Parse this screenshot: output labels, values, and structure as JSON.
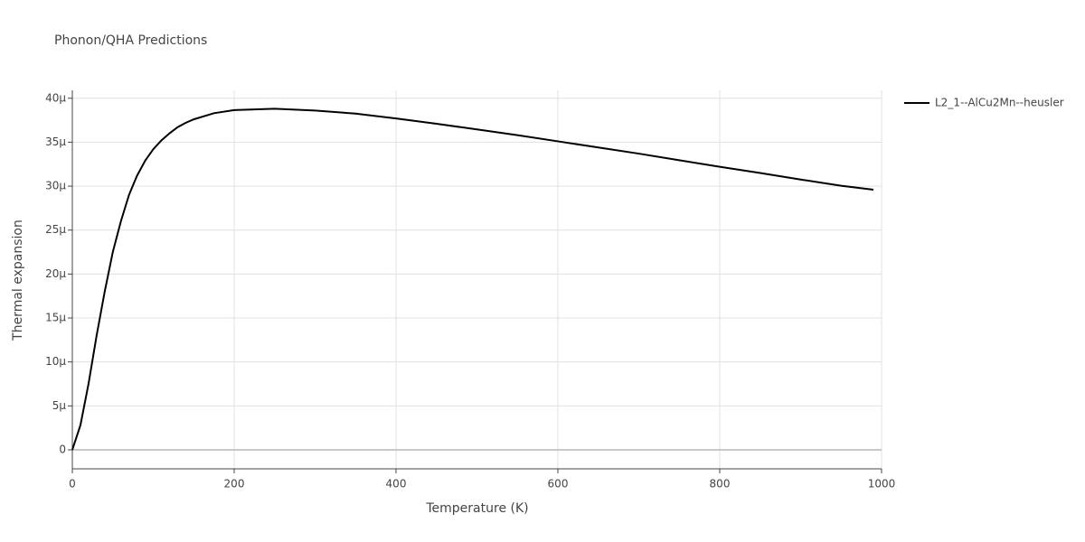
{
  "chart_data": {
    "type": "line",
    "title": "Phonon/QHA Predictions",
    "x_label": "Temperature (K)",
    "y_label": "Thermal expansion",
    "x": [
      0,
      10,
      20,
      30,
      40,
      50,
      60,
      70,
      80,
      90,
      100,
      110,
      120,
      130,
      140,
      150,
      175,
      200,
      250,
      300,
      350,
      400,
      450,
      500,
      550,
      600,
      650,
      700,
      750,
      800,
      850,
      900,
      950,
      990
    ],
    "series": [
      {
        "name": "L2_1--AlCu2Mn--heusler",
        "color": "#000000",
        "values": [
          0,
          2.8e-06,
          7.5e-06,
          1.3e-05,
          1.8e-05,
          2.25e-05,
          2.6e-05,
          2.9e-05,
          3.12e-05,
          3.29e-05,
          3.42e-05,
          3.52e-05,
          3.6e-05,
          3.67e-05,
          3.72e-05,
          3.76e-05,
          3.83e-05,
          3.865e-05,
          3.88e-05,
          3.86e-05,
          3.825e-05,
          3.77e-05,
          3.71e-05,
          3.645e-05,
          3.58e-05,
          3.51e-05,
          3.44e-05,
          3.37e-05,
          3.295e-05,
          3.22e-05,
          3.15e-05,
          3.075e-05,
          3.005e-05,
          2.96e-05
        ]
      }
    ],
    "xlim": [
      0,
      1000
    ],
    "xticks": [
      0,
      200,
      400,
      600,
      800,
      1000
    ],
    "ylim": [
      -2.16e-06,
      4.09e-05
    ],
    "yticks": [
      0,
      {
        "value": 5e-06,
        "label": "5μ"
      },
      {
        "value": 1e-05,
        "label": "10μ"
      },
      {
        "value": 1.5e-05,
        "label": "15μ"
      },
      {
        "value": 2e-05,
        "label": "20μ"
      },
      {
        "value": 2.5e-05,
        "label": "25μ"
      },
      {
        "value": 3e-05,
        "label": "30μ"
      },
      {
        "value": 3.5e-05,
        "label": "35μ"
      },
      {
        "value": 4e-05,
        "label": "40μ"
      }
    ],
    "grid": true,
    "legend": "right"
  }
}
